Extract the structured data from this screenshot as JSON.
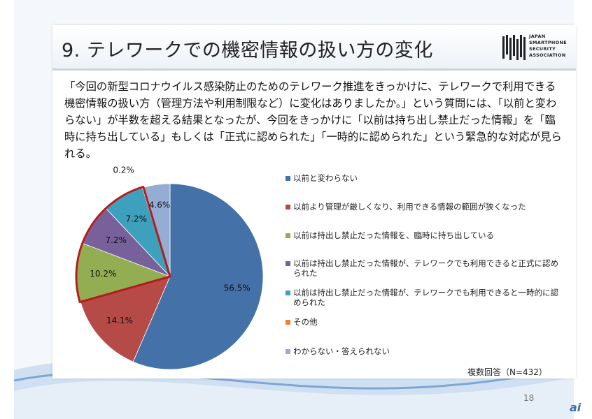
{
  "slide": {
    "title": "9. テレワークでの機密情報の扱い方の変化",
    "logo_words": [
      "JAPAN",
      "SMARTPHONE",
      "SECURITY",
      "ASSOCIATION"
    ],
    "body": "「今回の新型コロナウイルス感染防止のためのテレワーク推進をきっかけに、テレワークで利用できる機密情報の扱い方（管理方法や利用制限など）に変化はありましたか。」という質問には、「以前と変わらない」が半数を超える結果となったが、今回をきっかけに「以前は持ち出し禁止だった情報」を「臨時に持ち出している」もしくは「正式に認められた」「一時的に認められた」という緊急的な対応が見られる。",
    "note": "複数回答（N=432）",
    "page_number": "18",
    "watermark": "ai"
  },
  "chart_data": {
    "type": "pie",
    "title": "",
    "slices": [
      {
        "label": "以前と変わらない",
        "value": 56.5,
        "display": "56.5%",
        "color": "#4472a8"
      },
      {
        "label": "以前より管理が厳しくなり、利用できる情報の範囲が狭くなった",
        "value": 14.1,
        "display": "14.1%",
        "color": "#b64a47"
      },
      {
        "label": "以前は持出し禁止だった情報を、臨時に持ち出している",
        "value": 10.2,
        "display": "10.2%",
        "color": "#93ae52"
      },
      {
        "label": "以前は持出し禁止だった情報が、テレワークでも利用できると正式に認められた",
        "value": 7.2,
        "display": "7.2%",
        "color": "#78609a"
      },
      {
        "label": "以前は持出し禁止だった情報が、テレワークでも利用できると一時的に認められた",
        "value": 7.2,
        "display": "7.2%",
        "color": "#3da1bd"
      },
      {
        "label": "その他",
        "value": 0.2,
        "display": "0.2%",
        "color": "#e98432"
      },
      {
        "label": "わからない・答えられない",
        "value": 4.6,
        "display": "4.6%",
        "color": "#95add3"
      }
    ],
    "highlight": {
      "slices": [
        2,
        3,
        4,
        5
      ],
      "color": "#b21e1e"
    },
    "legend_position": "right"
  }
}
